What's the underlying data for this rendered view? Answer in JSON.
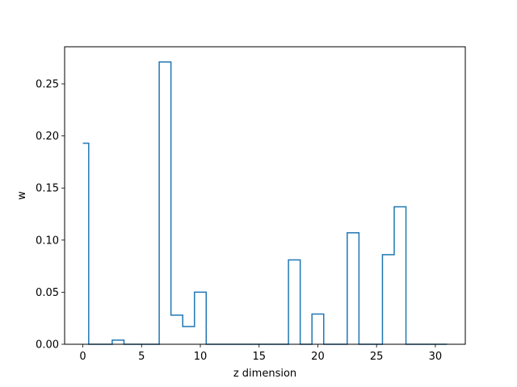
{
  "chart_data": {
    "type": "line",
    "drawstyle": "steps-mid",
    "title": "",
    "xlabel": "z dimension",
    "ylabel": "w",
    "xlim": [
      -1.55,
      32.55
    ],
    "ylim": [
      0,
      0.2856
    ],
    "xticks": [
      0,
      5,
      10,
      15,
      20,
      25,
      30
    ],
    "yticks": [
      0.0,
      0.05,
      0.1,
      0.15,
      0.2,
      0.25
    ],
    "ytick_labels": [
      "0.00",
      "0.05",
      "0.10",
      "0.15",
      "0.20",
      "0.25"
    ],
    "grid": false,
    "legend": "none",
    "series_color": "#1f77b4",
    "x": [
      0,
      1,
      2,
      3,
      4,
      5,
      6,
      7,
      8,
      9,
      10,
      11,
      12,
      13,
      14,
      15,
      16,
      17,
      18,
      19,
      20,
      21,
      22,
      23,
      24,
      25,
      26,
      27,
      28,
      29,
      30,
      31
    ],
    "y": [
      0.193,
      0,
      0,
      0.004,
      0,
      0,
      0,
      0.271,
      0.028,
      0.017,
      0.05,
      0,
      0,
      0,
      0,
      0,
      0,
      0,
      0.081,
      0,
      0.029,
      0,
      0,
      0.107,
      0,
      0,
      0.086,
      0.132,
      0,
      0,
      0,
      0
    ]
  }
}
